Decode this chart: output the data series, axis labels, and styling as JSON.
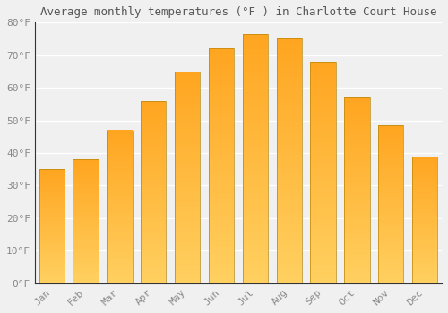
{
  "months": [
    "Jan",
    "Feb",
    "Mar",
    "Apr",
    "May",
    "Jun",
    "Jul",
    "Aug",
    "Sep",
    "Oct",
    "Nov",
    "Dec"
  ],
  "temperatures": [
    35,
    38,
    47,
    56,
    65,
    72,
    76.5,
    75,
    68,
    57,
    48.5,
    39
  ],
  "bar_color_top": "#FFA520",
  "bar_color_bottom": "#FFD060",
  "title": "Average monthly temperatures (°F ) in Charlotte Court House",
  "ylim": [
    0,
    80
  ],
  "yticks": [
    0,
    10,
    20,
    30,
    40,
    50,
    60,
    70,
    80
  ],
  "ytick_labels": [
    "0°F",
    "10°F",
    "20°F",
    "30°F",
    "40°F",
    "50°F",
    "60°F",
    "70°F",
    "80°F"
  ],
  "background_color": "#f0f0f0",
  "grid_color": "#ffffff",
  "bar_edge_color": "#b8860b",
  "title_fontsize": 9,
  "tick_fontsize": 8,
  "tick_color": "#888888",
  "title_color": "#555555",
  "font_family": "monospace",
  "bar_width": 0.75,
  "n_gradient_segments": 200
}
